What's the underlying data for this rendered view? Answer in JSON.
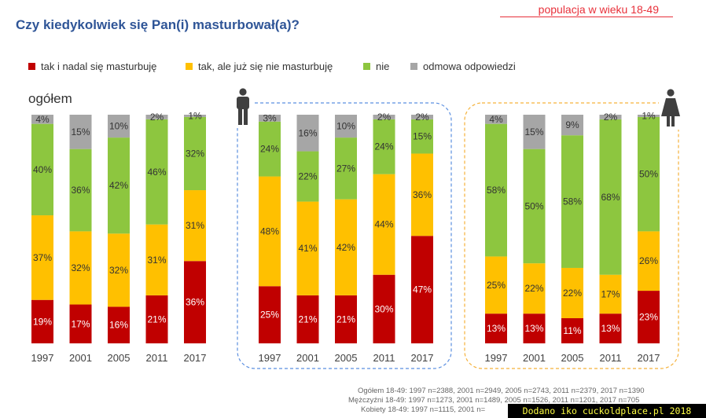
{
  "header": {
    "title": "Czy kiedykolwiek się Pan(i) masturbował(a)?",
    "subtitle": "populacja w wieku 18-49"
  },
  "legend": [
    {
      "label": "tak i nadal się masturbuję",
      "color": "#c00000"
    },
    {
      "label": "tak, ale już się nie masturbuję",
      "color": "#ffc000"
    },
    {
      "label": "nie",
      "color": "#8dc63f"
    },
    {
      "label": "odmowa odpowiedzi",
      "color": "#a6a6a6"
    }
  ],
  "group_label": "ogółem",
  "chart_data": {
    "type": "bar",
    "stacked": true,
    "title": "Czy kiedykolwiek się Pan(i) masturbował(a)?",
    "categories": [
      "1997",
      "2001",
      "2005",
      "2011",
      "2017"
    ],
    "panels": [
      {
        "name": "ogółem",
        "series": [
          {
            "name": "tak i nadal się masturbuję",
            "values": [
              19,
              17,
              16,
              21,
              36
            ]
          },
          {
            "name": "tak, ale już się nie masturbuję",
            "values": [
              37,
              32,
              32,
              31,
              31
            ]
          },
          {
            "name": "nie",
            "values": [
              40,
              36,
              42,
              46,
              32
            ]
          },
          {
            "name": "odmowa odpowiedzi",
            "values": [
              4,
              15,
              10,
              2,
              1
            ]
          }
        ]
      },
      {
        "name": "mężczyźni",
        "series": [
          {
            "name": "tak i nadal się masturbuję",
            "values": [
              25,
              21,
              21,
              30,
              47
            ]
          },
          {
            "name": "tak, ale już się nie masturbuję",
            "values": [
              48,
              41,
              42,
              44,
              36
            ]
          },
          {
            "name": "nie",
            "values": [
              24,
              22,
              27,
              24,
              15
            ]
          },
          {
            "name": "odmowa odpowiedzi",
            "values": [
              3,
              16,
              10,
              2,
              2
            ]
          }
        ]
      },
      {
        "name": "kobiety",
        "series": [
          {
            "name": "tak i nadal się masturbuję",
            "values": [
              13,
              13,
              11,
              13,
              23
            ]
          },
          {
            "name": "tak, ale już się nie masturbuję",
            "values": [
              25,
              22,
              22,
              17,
              26
            ]
          },
          {
            "name": "nie",
            "values": [
              58,
              50,
              58,
              68,
              50
            ]
          },
          {
            "name": "odmowa odpowiedzi",
            "values": [
              4,
              15,
              9,
              2,
              1
            ]
          }
        ]
      }
    ],
    "colors": [
      "#c00000",
      "#ffc000",
      "#8dc63f",
      "#a6a6a6"
    ],
    "label_colors": [
      "#ffffff",
      "#333333",
      "#333333",
      "#333333"
    ],
    "ylim": [
      0,
      100
    ]
  },
  "footnotes": [
    "Ogółem 18-49: 1997 n=2388, 2001 n=2949, 2005 n=2743, 2011 n=2379, 2017 n=1390",
    "Mężczyźni 18-49: 1997 n=1273, 2001 n=1489, 2005 n=1526, 2011 n=1201, 2017 n=705",
    "Kobiety 18-49: 1997 n=1115, 2001 n="
  ],
  "watermark": "Dodano iko cuckoldplace.pl 2018"
}
